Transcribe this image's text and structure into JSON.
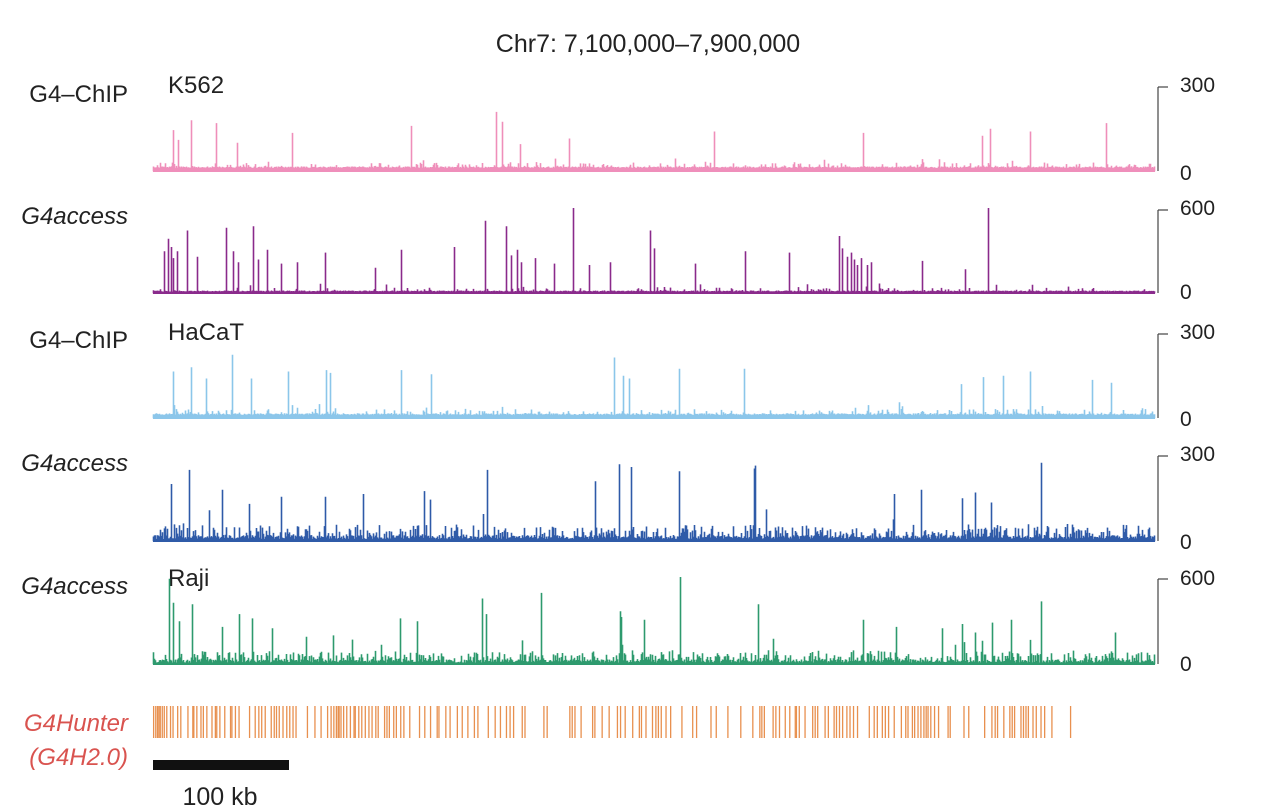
{
  "chart_data": {
    "type": "genome-browser-tracks",
    "title": "Chr7: 7,100,000–7,900,000",
    "region": {
      "chrom": "Chr7",
      "start": 7100000,
      "end": 7900000
    },
    "tracks": [
      {
        "label": "G4–ChIP",
        "label_italic": false,
        "cell_line": "K562",
        "color": "#ef8fbb",
        "ylim": [
          0,
          300
        ],
        "y_ticks": [
          "300",
          "0"
        ],
        "baseline": 10,
        "noise": 13,
        "density": 0.15,
        "peaks": [
          [
            7116000,
            145
          ],
          [
            7120000,
            110
          ],
          [
            7130000,
            180
          ],
          [
            7150000,
            170
          ],
          [
            7167000,
            100
          ],
          [
            7211000,
            135
          ],
          [
            7306000,
            160
          ],
          [
            7374000,
            210
          ],
          [
            7379000,
            175
          ],
          [
            7393000,
            95
          ],
          [
            7432000,
            115
          ],
          [
            7548000,
            140
          ],
          [
            7667000,
            135
          ],
          [
            7762000,
            125
          ],
          [
            7768000,
            150
          ],
          [
            7800000,
            140
          ],
          [
            7861000,
            170
          ]
        ]
      },
      {
        "label": "G4access",
        "label_italic": true,
        "cell_line": "",
        "color": "#8a2b8c",
        "ylim": [
          0,
          600
        ],
        "y_ticks": [
          "600",
          "0"
        ],
        "baseline": 8,
        "noise": 20,
        "density": 0.07,
        "peaks": [
          [
            7109000,
            300
          ],
          [
            7112000,
            390
          ],
          [
            7114000,
            330
          ],
          [
            7116000,
            250
          ],
          [
            7119000,
            300
          ],
          [
            7127000,
            450
          ],
          [
            7135000,
            260
          ],
          [
            7158000,
            470
          ],
          [
            7164000,
            300
          ],
          [
            7168000,
            220
          ],
          [
            7180000,
            480
          ],
          [
            7184000,
            240
          ],
          [
            7191000,
            310
          ],
          [
            7202000,
            210
          ],
          [
            7215000,
            220
          ],
          [
            7237000,
            290
          ],
          [
            7277000,
            180
          ],
          [
            7298000,
            310
          ],
          [
            7340000,
            330
          ],
          [
            7365000,
            520
          ],
          [
            7382000,
            480
          ],
          [
            7386000,
            270
          ],
          [
            7391000,
            310
          ],
          [
            7394000,
            220
          ],
          [
            7405000,
            250
          ],
          [
            7420000,
            210
          ],
          [
            7435000,
            690
          ],
          [
            7448000,
            200
          ],
          [
            7465000,
            220
          ],
          [
            7497000,
            450
          ],
          [
            7500000,
            320
          ],
          [
            7533000,
            210
          ],
          [
            7573000,
            300
          ],
          [
            7608000,
            290
          ],
          [
            7648000,
            410
          ],
          [
            7650000,
            320
          ],
          [
            7654000,
            260
          ],
          [
            7657000,
            290
          ],
          [
            7660000,
            240
          ],
          [
            7662000,
            200
          ],
          [
            7665000,
            250
          ],
          [
            7670000,
            200
          ],
          [
            7673000,
            220
          ],
          [
            7714000,
            230
          ],
          [
            7748000,
            170
          ],
          [
            7767000,
            650
          ]
        ]
      },
      {
        "label": "G4–ChIP",
        "label_italic": false,
        "cell_line": "HaCaT",
        "color": "#8cc6ea",
        "ylim": [
          0,
          300
        ],
        "y_ticks": [
          "300",
          "0"
        ],
        "baseline": 10,
        "noise": 14,
        "density": 0.16,
        "peaks": [
          [
            7116000,
            165
          ],
          [
            7130000,
            180
          ],
          [
            7142000,
            140
          ],
          [
            7163000,
            225
          ],
          [
            7178000,
            140
          ],
          [
            7208000,
            165
          ],
          [
            7238000,
            170
          ],
          [
            7241000,
            160
          ],
          [
            7298000,
            170
          ],
          [
            7322000,
            155
          ],
          [
            7468000,
            215
          ],
          [
            7475000,
            150
          ],
          [
            7480000,
            140
          ],
          [
            7520000,
            175
          ],
          [
            7572000,
            175
          ],
          [
            7745000,
            120
          ],
          [
            7763000,
            145
          ],
          [
            7779000,
            150
          ],
          [
            7800000,
            165
          ],
          [
            7850000,
            135
          ],
          [
            7865000,
            125
          ]
        ]
      },
      {
        "label": "G4access",
        "label_italic": true,
        "cell_line": "",
        "color": "#2f5ba8",
        "ylim": [
          0,
          300
        ],
        "y_ticks": [
          "300",
          "0"
        ],
        "baseline": 6,
        "noise": 34,
        "density": 0.38,
        "peaks": [
          [
            7114000,
            200
          ],
          [
            7129000,
            250
          ],
          [
            7155000,
            180
          ],
          [
            7177000,
            130
          ],
          [
            7202000,
            155
          ],
          [
            7237000,
            155
          ],
          [
            7268000,
            165
          ],
          [
            7316000,
            175
          ],
          [
            7321000,
            145
          ],
          [
            7367000,
            250
          ],
          [
            7453000,
            210
          ],
          [
            7472000,
            270
          ],
          [
            7482000,
            260
          ],
          [
            7520000,
            245
          ],
          [
            7580000,
            175
          ],
          [
            7580000,
            255
          ],
          [
            7581000,
            265
          ],
          [
            7692000,
            165
          ],
          [
            7713000,
            180
          ],
          [
            7746000,
            150
          ],
          [
            7756000,
            170
          ],
          [
            7769000,
            135
          ],
          [
            7809000,
            275
          ]
        ]
      },
      {
        "label": "G4access",
        "label_italic": true,
        "cell_line": "Raji",
        "color": "#2e9a6e",
        "ylim": [
          0,
          600
        ],
        "y_ticks": [
          "600",
          "0"
        ],
        "baseline": 8,
        "noise": 55,
        "density": 0.38,
        "peaks": [
          [
            7113000,
            600
          ],
          [
            7116000,
            430
          ],
          [
            7121000,
            300
          ],
          [
            7131000,
            420
          ],
          [
            7155000,
            260
          ],
          [
            7169000,
            350
          ],
          [
            7179000,
            320
          ],
          [
            7195000,
            250
          ],
          [
            7222000,
            190
          ],
          [
            7244000,
            200
          ],
          [
            7259000,
            170
          ],
          [
            7297000,
            320
          ],
          [
            7311000,
            300
          ],
          [
            7363000,
            460
          ],
          [
            7366000,
            350
          ],
          [
            7410000,
            500
          ],
          [
            7473000,
            370
          ],
          [
            7474000,
            330
          ],
          [
            7492000,
            310
          ],
          [
            7521000,
            840
          ],
          [
            7583000,
            420
          ],
          [
            7667000,
            310
          ],
          [
            7693000,
            260
          ],
          [
            7730000,
            250
          ],
          [
            7746000,
            280
          ],
          [
            7756000,
            220
          ],
          [
            7770000,
            290
          ],
          [
            7785000,
            310
          ],
          [
            7809000,
            440
          ],
          [
            7868000,
            220
          ]
        ]
      },
      {
        "label": "G4Hunter",
        "label_line2": "(G4H2.0)",
        "label_italic": true,
        "color": "#e8904f",
        "label_color": "#d9534f",
        "type": "motif-ticks",
        "motifs": [
          7100500,
          7102200,
          7103600,
          7104700,
          7105800,
          7107400,
          7109000,
          7111000,
          7114000,
          7116000,
          7119700,
          7122200,
          7127900,
          7131800,
          7132600,
          7135000,
          7138300,
          7140200,
          7143000,
          7147100,
          7149800,
          7150900,
          7153400,
          7157300,
          7161900,
          7163000,
          7165800,
          7168700,
          7177100,
          7181600,
          7184500,
          7186800,
          7189600,
          7194400,
          7196800,
          7198600,
          7200800,
          7203800,
          7206800,
          7209200,
          7211800,
          7214200,
          7223300,
          7229300,
          7234200,
          7239400,
          7242200,
          7244400,
          7246400,
          7247800,
          7248600,
          7250100,
          7252200,
          7254700,
          7257600,
          7260500,
          7261500,
          7264300,
          7266700,
          7269500,
          7272400,
          7274900,
          7277900,
          7279800,
          7284900,
          7286800,
          7288700,
          7292200,
          7294300,
          7297800,
          7300300,
          7305000,
          7312800,
          7317000,
          7321600,
          7326900,
          7328300,
          7333800,
          7337200,
          7343000,
          7346900,
          7351400,
          7356600,
          7359400,
          7367700,
          7373200,
          7377400,
          7382200,
          7385100,
          7387900,
          7394800,
          7397000,
          7412100,
          7414700,
          7432800,
          7434700,
          7436900,
          7441800,
          7451000,
          7452800,
          7458600,
          7464200,
          7470800,
          7473300,
          7477000,
          7483000,
          7488300,
          7490000,
          7493600,
          7498800,
          7501500,
          7503500,
          7505800,
          7509600,
          7513300,
          7522300,
          7530900,
          7534000,
          7545500,
          7549700,
          7559000,
          7569300,
          7578900,
          7584500,
          7586100,
          7588100,
          7595100,
          7597300,
          7600200,
          7604800,
          7608400,
          7612800,
          7613700,
          7616000,
          7620600,
          7626700,
          7628700,
          7630700,
          7636600,
          7639200,
          7643800,
          7645700,
          7648100,
          7650600,
          7654000,
          7656500,
          7659300,
          7662500,
          7671900,
          7675800,
          7678300,
          7682300,
          7684700,
          7687300,
          7691800,
          7697500,
          7701000,
          7702800,
          7706300,
          7708100,
          7710800,
          7713100,
          7715500,
          7717300,
          7718800,
          7721000,
          7724000,
          7727200,
          7734800,
          7736500,
          7747500,
          7751300,
          7764000,
          7769800,
          7772400,
          7774300,
          7779300,
          7784100,
          7786000,
          7787900,
          7793000,
          7795000,
          7797000,
          7798900,
          7802600,
          7805200,
          7809000,
          7811900,
          7817700,
          7832600
        ]
      }
    ],
    "scale_bar": {
      "label": "100 kb",
      "length_bp": 100000
    },
    "grid": false,
    "legend": "none"
  }
}
